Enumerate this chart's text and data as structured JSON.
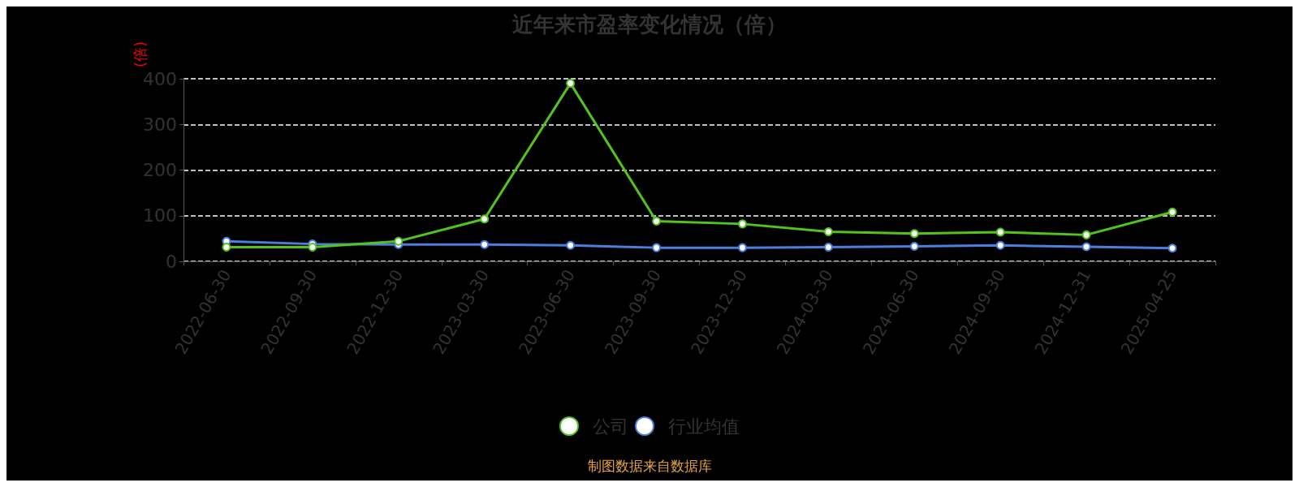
{
  "chart_data": {
    "type": "line",
    "title": "近年来市盈率变化情况（倍）",
    "ylabel": "(倍)",
    "categories": [
      "2022-06-30",
      "2022-09-30",
      "2022-12-30",
      "2023-03-30",
      "2023-06-30",
      "2023-09-30",
      "2023-12-30",
      "2024-03-30",
      "2024-06-30",
      "2024-09-30",
      "2024-12-31",
      "2025-04-25"
    ],
    "series": [
      {
        "name": "公司",
        "color": "#52c41a",
        "values": [
          31,
          31,
          44,
          93,
          390,
          88,
          82,
          65,
          61,
          64,
          58,
          108
        ]
      },
      {
        "name": "行业均值",
        "color": "#4a7fe0",
        "values": [
          44,
          38,
          37,
          37,
          35,
          30,
          30,
          31,
          33,
          35,
          32,
          29
        ]
      }
    ],
    "ylim": [
      0,
      400
    ],
    "yticks": [
      0,
      100,
      200,
      300,
      400
    ],
    "grid": "y",
    "legend": "bottom",
    "marker": "circle",
    "line_style": "solid",
    "annotations": [
      "制图数据来自数据库"
    ]
  }
}
